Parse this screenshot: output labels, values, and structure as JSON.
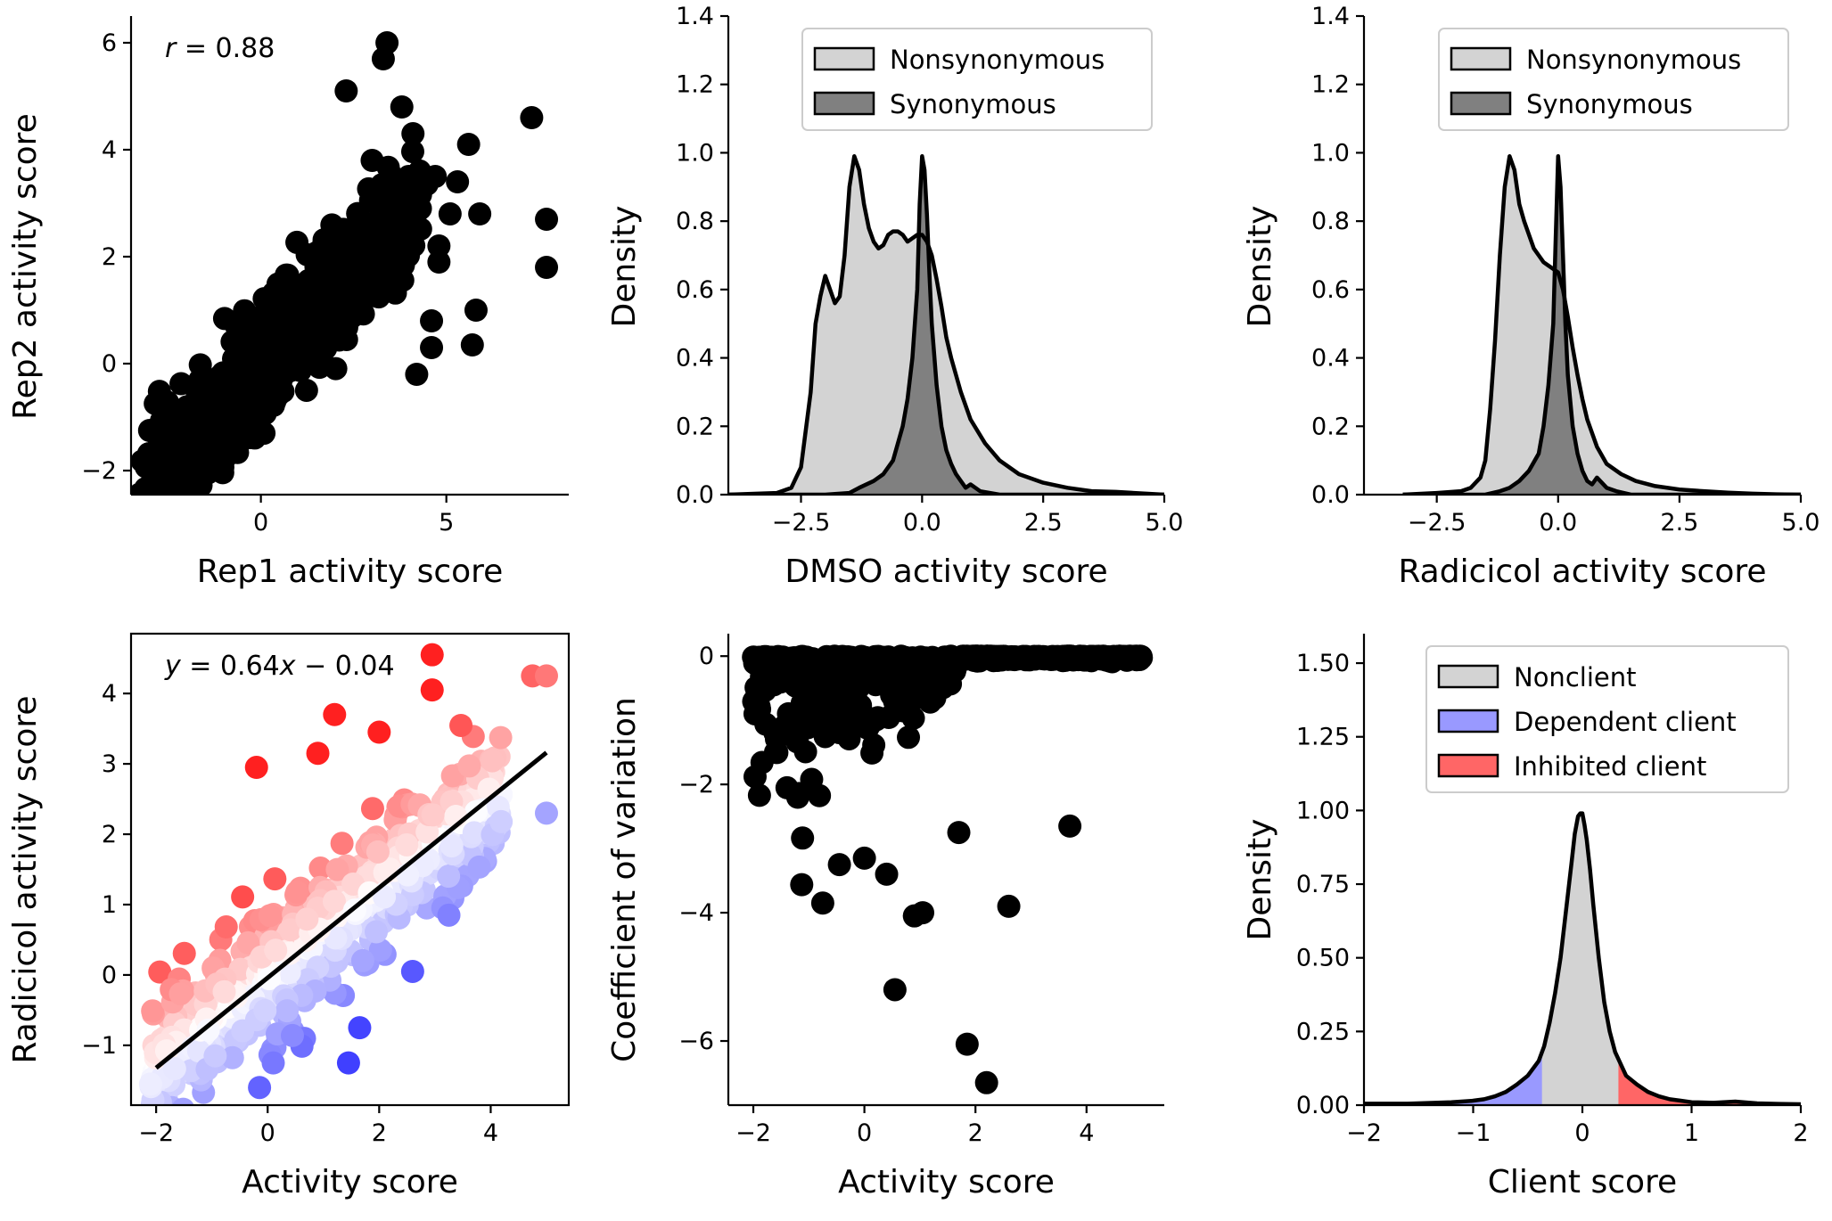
{
  "chart_data": [
    {
      "id": "A",
      "type": "scatter",
      "xlabel": "Rep1 activity score",
      "ylabel": "Rep2 activity score",
      "xlim": [
        -3.5,
        8.3
      ],
      "ylim": [
        -2.45,
        6.5
      ],
      "xticks": [
        0,
        5
      ],
      "xtick_labels": [
        "0",
        "5"
      ],
      "yticks": [
        -2,
        0,
        2,
        4,
        6
      ],
      "ytick_labels": [
        "−2",
        "0",
        "2",
        "4",
        "6"
      ],
      "annotation": {
        "var": "r",
        "text": " = 0.88"
      },
      "marker_color": "#000000",
      "cluster": {
        "x_range": [
          -3,
          4
        ],
        "slope": 0.75,
        "intercept": -0.15,
        "spread": 0.9,
        "count": 900
      },
      "points": [
        {
          "x": 7.3,
          "y": 4.6
        },
        {
          "x": 7.7,
          "y": 2.7
        },
        {
          "x": 7.7,
          "y": 1.8
        },
        {
          "x": 5.9,
          "y": 2.8
        },
        {
          "x": 5.6,
          "y": 4.1
        },
        {
          "x": 5.8,
          "y": 1.0
        },
        {
          "x": 5.7,
          "y": 0.35
        },
        {
          "x": 4.6,
          "y": 0.8
        },
        {
          "x": 4.6,
          "y": 0.3
        },
        {
          "x": 4.2,
          "y": -0.2
        },
        {
          "x": 3.4,
          "y": 6.0
        },
        {
          "x": 3.3,
          "y": 5.7
        },
        {
          "x": 2.3,
          "y": 5.1
        },
        {
          "x": 3.8,
          "y": 4.8
        },
        {
          "x": 4.1,
          "y": 4.3
        },
        {
          "x": 4.7,
          "y": 3.5
        },
        {
          "x": 5.3,
          "y": 3.4
        },
        {
          "x": 5.1,
          "y": 2.8
        },
        {
          "x": 4.8,
          "y": 2.2
        },
        {
          "x": 4.8,
          "y": 1.9
        },
        {
          "x": 4.3,
          "y": 2.9
        },
        {
          "x": -3.0,
          "y": -1.25
        },
        {
          "x": -2.5,
          "y": -2.1
        },
        {
          "x": -1.3,
          "y": -1.8
        },
        {
          "x": 3.0,
          "y": 3.8
        },
        {
          "x": 3.5,
          "y": 3.3
        }
      ]
    },
    {
      "id": "B",
      "type": "area",
      "xlabel": "DMSO activity score",
      "ylabel": "Density",
      "xlim": [
        -4,
        5
      ],
      "ylim": [
        0,
        1.4
      ],
      "xticks": [
        -2.5,
        0,
        2.5,
        5
      ],
      "xtick_labels": [
        "−2.5",
        "0.0",
        "2.5",
        "5.0"
      ],
      "yticks": [
        0,
        0.2,
        0.4,
        0.6,
        0.8,
        1.0,
        1.2,
        1.4
      ],
      "ytick_labels": [
        "0.0",
        "0.2",
        "0.4",
        "0.6",
        "0.8",
        "1.0",
        "1.2",
        "1.4"
      ],
      "legend": {
        "position": "top-right",
        "entries": [
          "Nonsynonymous",
          "Synonymous"
        ]
      },
      "series": [
        {
          "name": "Nonsynonymous",
          "color": "#d3d3d3",
          "x": [
            -4,
            -3,
            -2.7,
            -2.5,
            -2.3,
            -2.2,
            -2.1,
            -2.0,
            -1.9,
            -1.8,
            -1.7,
            -1.6,
            -1.5,
            -1.4,
            -1.3,
            -1.2,
            -1.1,
            -1.0,
            -0.9,
            -0.8,
            -0.7,
            -0.6,
            -0.5,
            -0.4,
            -0.3,
            -0.2,
            -0.1,
            0.0,
            0.1,
            0.2,
            0.3,
            0.4,
            0.5,
            0.6,
            0.8,
            1.0,
            1.3,
            1.6,
            2.0,
            2.5,
            3.0,
            3.5,
            4.0,
            4.5,
            5.0
          ],
          "y": [
            0.0,
            0.005,
            0.02,
            0.08,
            0.3,
            0.5,
            0.58,
            0.64,
            0.6,
            0.56,
            0.58,
            0.7,
            0.9,
            0.99,
            0.95,
            0.85,
            0.78,
            0.74,
            0.72,
            0.73,
            0.76,
            0.77,
            0.77,
            0.76,
            0.74,
            0.75,
            0.76,
            0.76,
            0.74,
            0.7,
            0.63,
            0.55,
            0.46,
            0.4,
            0.3,
            0.22,
            0.15,
            0.1,
            0.06,
            0.035,
            0.02,
            0.01,
            0.008,
            0.004,
            0.0
          ]
        },
        {
          "name": "Synonymous",
          "color": "#808080",
          "x": [
            -4,
            -2.0,
            -1.5,
            -1.3,
            -1.0,
            -0.8,
            -0.6,
            -0.4,
            -0.3,
            -0.2,
            -0.1,
            -0.05,
            0.0,
            0.05,
            0.1,
            0.15,
            0.2,
            0.3,
            0.4,
            0.5,
            0.6,
            0.7,
            0.8,
            0.9,
            1.0,
            1.1,
            1.2,
            1.4,
            1.6,
            2.0,
            5.0
          ],
          "y": [
            0.0,
            0.0,
            0.005,
            0.02,
            0.04,
            0.06,
            0.1,
            0.2,
            0.28,
            0.4,
            0.6,
            0.85,
            0.99,
            0.95,
            0.82,
            0.65,
            0.5,
            0.32,
            0.2,
            0.13,
            0.09,
            0.06,
            0.04,
            0.02,
            0.03,
            0.02,
            0.01,
            0.005,
            0.0,
            0.0,
            0.0
          ]
        }
      ]
    },
    {
      "id": "C",
      "type": "area",
      "xlabel": "Radicicol activity score",
      "ylabel": "Density",
      "xlim": [
        -4,
        5
      ],
      "ylim": [
        0,
        1.4
      ],
      "xticks": [
        -2.5,
        0,
        2.5,
        5
      ],
      "xtick_labels": [
        "−2.5",
        "0.0",
        "2.5",
        "5.0"
      ],
      "yticks": [
        0,
        0.2,
        0.4,
        0.6,
        0.8,
        1.0,
        1.2,
        1.4
      ],
      "ytick_labels": [
        "0.0",
        "0.2",
        "0.4",
        "0.6",
        "0.8",
        "1.0",
        "1.2",
        "1.4"
      ],
      "legend": {
        "position": "top-right",
        "entries": [
          "Nonsynonymous",
          "Synonymous"
        ]
      },
      "series": [
        {
          "name": "Nonsynonymous",
          "color": "#d3d3d3",
          "x": [
            -3.2,
            -2.5,
            -2.0,
            -1.8,
            -1.6,
            -1.5,
            -1.4,
            -1.3,
            -1.2,
            -1.1,
            -1.0,
            -0.9,
            -0.8,
            -0.7,
            -0.6,
            -0.5,
            -0.4,
            -0.3,
            -0.2,
            -0.1,
            0.0,
            0.1,
            0.2,
            0.3,
            0.4,
            0.5,
            0.6,
            0.8,
            1.0,
            1.3,
            1.6,
            2.0,
            2.5,
            3.0,
            3.5,
            4.0,
            4.5,
            5.0
          ],
          "y": [
            0.0,
            0.005,
            0.01,
            0.02,
            0.05,
            0.1,
            0.25,
            0.45,
            0.7,
            0.9,
            0.99,
            0.95,
            0.85,
            0.8,
            0.76,
            0.72,
            0.7,
            0.68,
            0.67,
            0.66,
            0.65,
            0.6,
            0.52,
            0.43,
            0.35,
            0.28,
            0.22,
            0.14,
            0.09,
            0.06,
            0.04,
            0.025,
            0.015,
            0.01,
            0.006,
            0.003,
            0.001,
            0.0
          ]
        },
        {
          "name": "Synonymous",
          "color": "#808080",
          "x": [
            -3.2,
            -1.5,
            -1.2,
            -1.0,
            -0.8,
            -0.6,
            -0.4,
            -0.3,
            -0.2,
            -0.1,
            -0.05,
            0.0,
            0.05,
            0.1,
            0.15,
            0.2,
            0.3,
            0.4,
            0.5,
            0.6,
            0.7,
            0.8,
            1.0,
            1.2,
            1.5,
            5.0
          ],
          "y": [
            0.0,
            0.0,
            0.01,
            0.02,
            0.04,
            0.07,
            0.12,
            0.2,
            0.32,
            0.5,
            0.75,
            0.99,
            0.9,
            0.7,
            0.5,
            0.35,
            0.2,
            0.12,
            0.07,
            0.04,
            0.03,
            0.05,
            0.02,
            0.01,
            0.0,
            0.0
          ]
        }
      ]
    },
    {
      "id": "D",
      "type": "scatter",
      "xlabel": "Activity score",
      "ylabel": "Radicicol activity score",
      "xlim": [
        -2.45,
        5.4
      ],
      "ylim": [
        -1.85,
        4.85
      ],
      "xticks": [
        -2,
        0,
        2,
        4
      ],
      "xtick_labels": [
        "−2",
        "0",
        "2",
        "4"
      ],
      "yticks": [
        -1,
        0,
        1,
        2,
        3,
        4
      ],
      "ytick_labels": [
        "−1",
        "0",
        "1",
        "2",
        "3",
        "4"
      ],
      "annotation": {
        "var1": "y",
        "mid": " = 0.64",
        "var2": "x",
        "tail": " − 0.04"
      },
      "fit_line": {
        "slope": 0.64,
        "intercept": -0.04,
        "x_range": [
          -2.0,
          5.0
        ],
        "color": "#000000"
      },
      "colormap": {
        "low": "#4040ff",
        "mid": "#ffffff",
        "high": "#ff2020"
      },
      "cluster": {
        "x_range": [
          -2.1,
          4.2
        ],
        "spread": 0.9,
        "count": 600
      },
      "points": [
        {
          "x": -0.2,
          "y": 2.95
        },
        {
          "x": 1.2,
          "y": 3.7
        },
        {
          "x": 0.9,
          "y": 3.15
        },
        {
          "x": 2.95,
          "y": 4.55
        },
        {
          "x": 2.95,
          "y": 4.05
        },
        {
          "x": 2.0,
          "y": 3.45
        },
        {
          "x": 4.75,
          "y": 4.25
        },
        {
          "x": 5.0,
          "y": 4.25
        },
        {
          "x": 5.0,
          "y": 2.3
        },
        {
          "x": 1.45,
          "y": -1.25
        },
        {
          "x": 1.65,
          "y": -0.75
        },
        {
          "x": 2.6,
          "y": 0.05
        },
        {
          "x": 3.25,
          "y": 0.85
        },
        {
          "x": 0.1,
          "y": -1.25
        },
        {
          "x": -2.1,
          "y": -1.55
        }
      ]
    },
    {
      "id": "E",
      "type": "scatter",
      "xlabel": "Activity score",
      "ylabel": "Coefficient of variation",
      "xlim": [
        -2.45,
        5.4
      ],
      "ylim": [
        -7.0,
        0.35
      ],
      "xticks": [
        -2,
        0,
        2,
        4
      ],
      "xtick_labels": [
        "−2",
        "0",
        "2",
        "4"
      ],
      "yticks": [
        -6,
        -4,
        -2,
        0
      ],
      "ytick_labels": [
        "−6",
        "−4",
        "−2",
        "0"
      ],
      "marker_color": "#000000",
      "cluster": {
        "x_range": [
          -2.0,
          5.0
        ],
        "count": 700
      },
      "points": [
        {
          "x": 2.2,
          "y": -6.65
        },
        {
          "x": 1.85,
          "y": -6.05
        },
        {
          "x": 0.55,
          "y": -5.2
        },
        {
          "x": 2.6,
          "y": -3.9
        },
        {
          "x": 0.9,
          "y": -4.05
        },
        {
          "x": 1.05,
          "y": -4.0
        },
        {
          "x": -0.75,
          "y": -3.85
        },
        {
          "x": 3.7,
          "y": -2.65
        },
        {
          "x": 0.4,
          "y": -3.4
        },
        {
          "x": -0.45,
          "y": -3.25
        },
        {
          "x": 0.0,
          "y": -3.15
        },
        {
          "x": 1.7,
          "y": -2.75
        },
        {
          "x": 4.9,
          "y": 0.0
        },
        {
          "x": 4.6,
          "y": 0.0
        },
        {
          "x": 4.3,
          "y": 0.0
        },
        {
          "x": -1.6,
          "y": -1.5
        },
        {
          "x": -1.2,
          "y": -2.2
        }
      ]
    },
    {
      "id": "F",
      "type": "area",
      "xlabel": "Client score",
      "ylabel": "Density",
      "xlim": [
        -2,
        2
      ],
      "ylim": [
        0,
        1.6
      ],
      "xticks": [
        -2,
        -1,
        0,
        1,
        2
      ],
      "xtick_labels": [
        "−2",
        "−1",
        "0",
        "1",
        "2"
      ],
      "yticks": [
        0,
        0.25,
        0.5,
        0.75,
        1.0,
        1.25,
        1.5
      ],
      "ytick_labels": [
        "0.00",
        "0.25",
        "0.50",
        "0.75",
        "1.00",
        "1.25",
        "1.50"
      ],
      "legend": {
        "position": "top-right",
        "entries": [
          "Nonclient",
          "Dependent client",
          "Inhibited client"
        ]
      },
      "regions": {
        "dependent_below": -0.37,
        "inhibited_above": 0.33
      },
      "colors": {
        "Nonclient": "#d3d3d3",
        "Dependent client": "#9999ff",
        "Inhibited client": "#ff6666"
      },
      "x": [
        -2.0,
        -1.6,
        -1.2,
        -1.0,
        -0.9,
        -0.8,
        -0.7,
        -0.6,
        -0.5,
        -0.4,
        -0.35,
        -0.3,
        -0.25,
        -0.2,
        -0.15,
        -0.1,
        -0.07,
        -0.04,
        -0.02,
        0.0,
        0.02,
        0.04,
        0.07,
        0.1,
        0.15,
        0.2,
        0.25,
        0.3,
        0.35,
        0.4,
        0.5,
        0.6,
        0.7,
        0.8,
        0.9,
        1.0,
        1.2,
        1.4,
        1.6,
        1.8,
        2.0
      ],
      "y": [
        0.005,
        0.005,
        0.01,
        0.015,
        0.02,
        0.03,
        0.045,
        0.07,
        0.1,
        0.15,
        0.2,
        0.28,
        0.38,
        0.5,
        0.66,
        0.82,
        0.92,
        0.98,
        0.99,
        0.99,
        0.95,
        0.9,
        0.8,
        0.68,
        0.5,
        0.35,
        0.25,
        0.18,
        0.14,
        0.1,
        0.07,
        0.045,
        0.03,
        0.02,
        0.015,
        0.01,
        0.008,
        0.012,
        0.006,
        0.004,
        0.003
      ]
    }
  ]
}
